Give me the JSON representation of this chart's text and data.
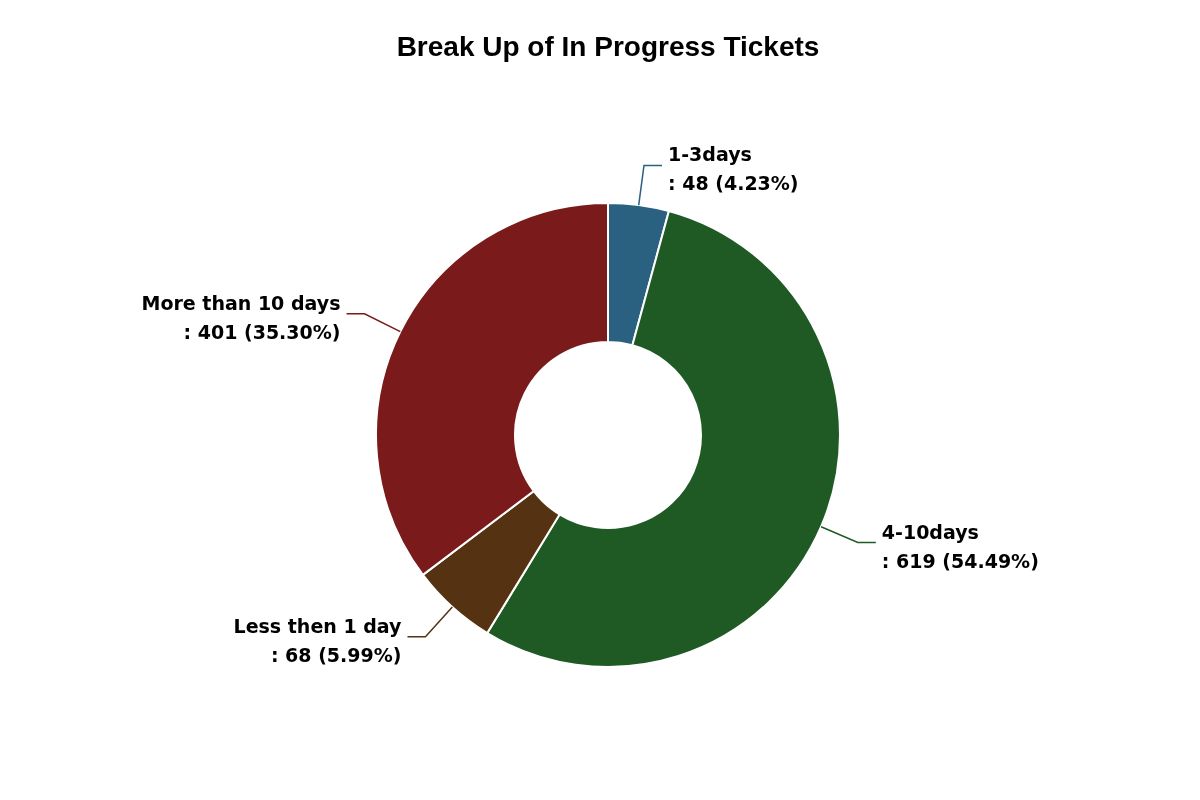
{
  "chart_data": {
    "type": "donut",
    "title": "Break Up of In Progress Tickets",
    "categories": [
      "1-3days",
      "4-10days",
      "Less then 1 day",
      "More than 10 days"
    ],
    "values": [
      48,
      619,
      68,
      401
    ],
    "value_labels": [
      ": 48 (4.23%)",
      ": 619 (54.49%)",
      ": 68 (5.99%)",
      ": 401 (35.30%)"
    ],
    "colors": [
      "#2a6080",
      "#1f5a25",
      "#553312",
      "#7a1a1a"
    ]
  }
}
